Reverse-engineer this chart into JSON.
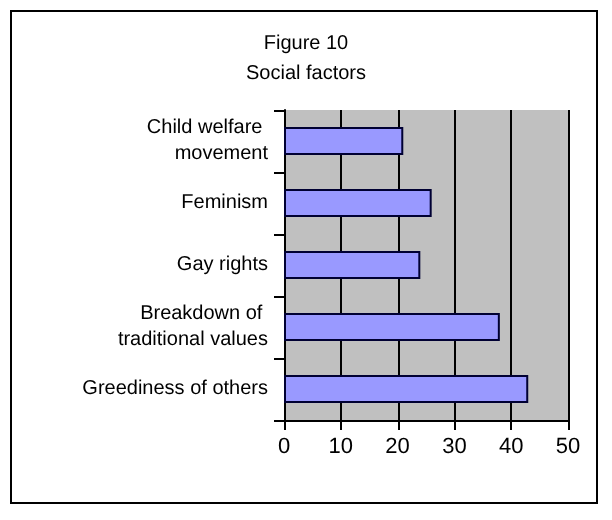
{
  "chart_data": {
    "type": "bar",
    "title": "Figure 10",
    "subtitle": "Social factors",
    "orientation": "horizontal",
    "categories": [
      "Child welfare movement",
      "Feminism",
      "Gay rights",
      "Breakdown of traditional values",
      "Greediness of others"
    ],
    "values": [
      21,
      26,
      24,
      38,
      43
    ],
    "color": "#9999ff",
    "xlim": [
      0,
      50
    ],
    "xticks": [
      0,
      10,
      20,
      30,
      40,
      50
    ],
    "grid": "x"
  }
}
